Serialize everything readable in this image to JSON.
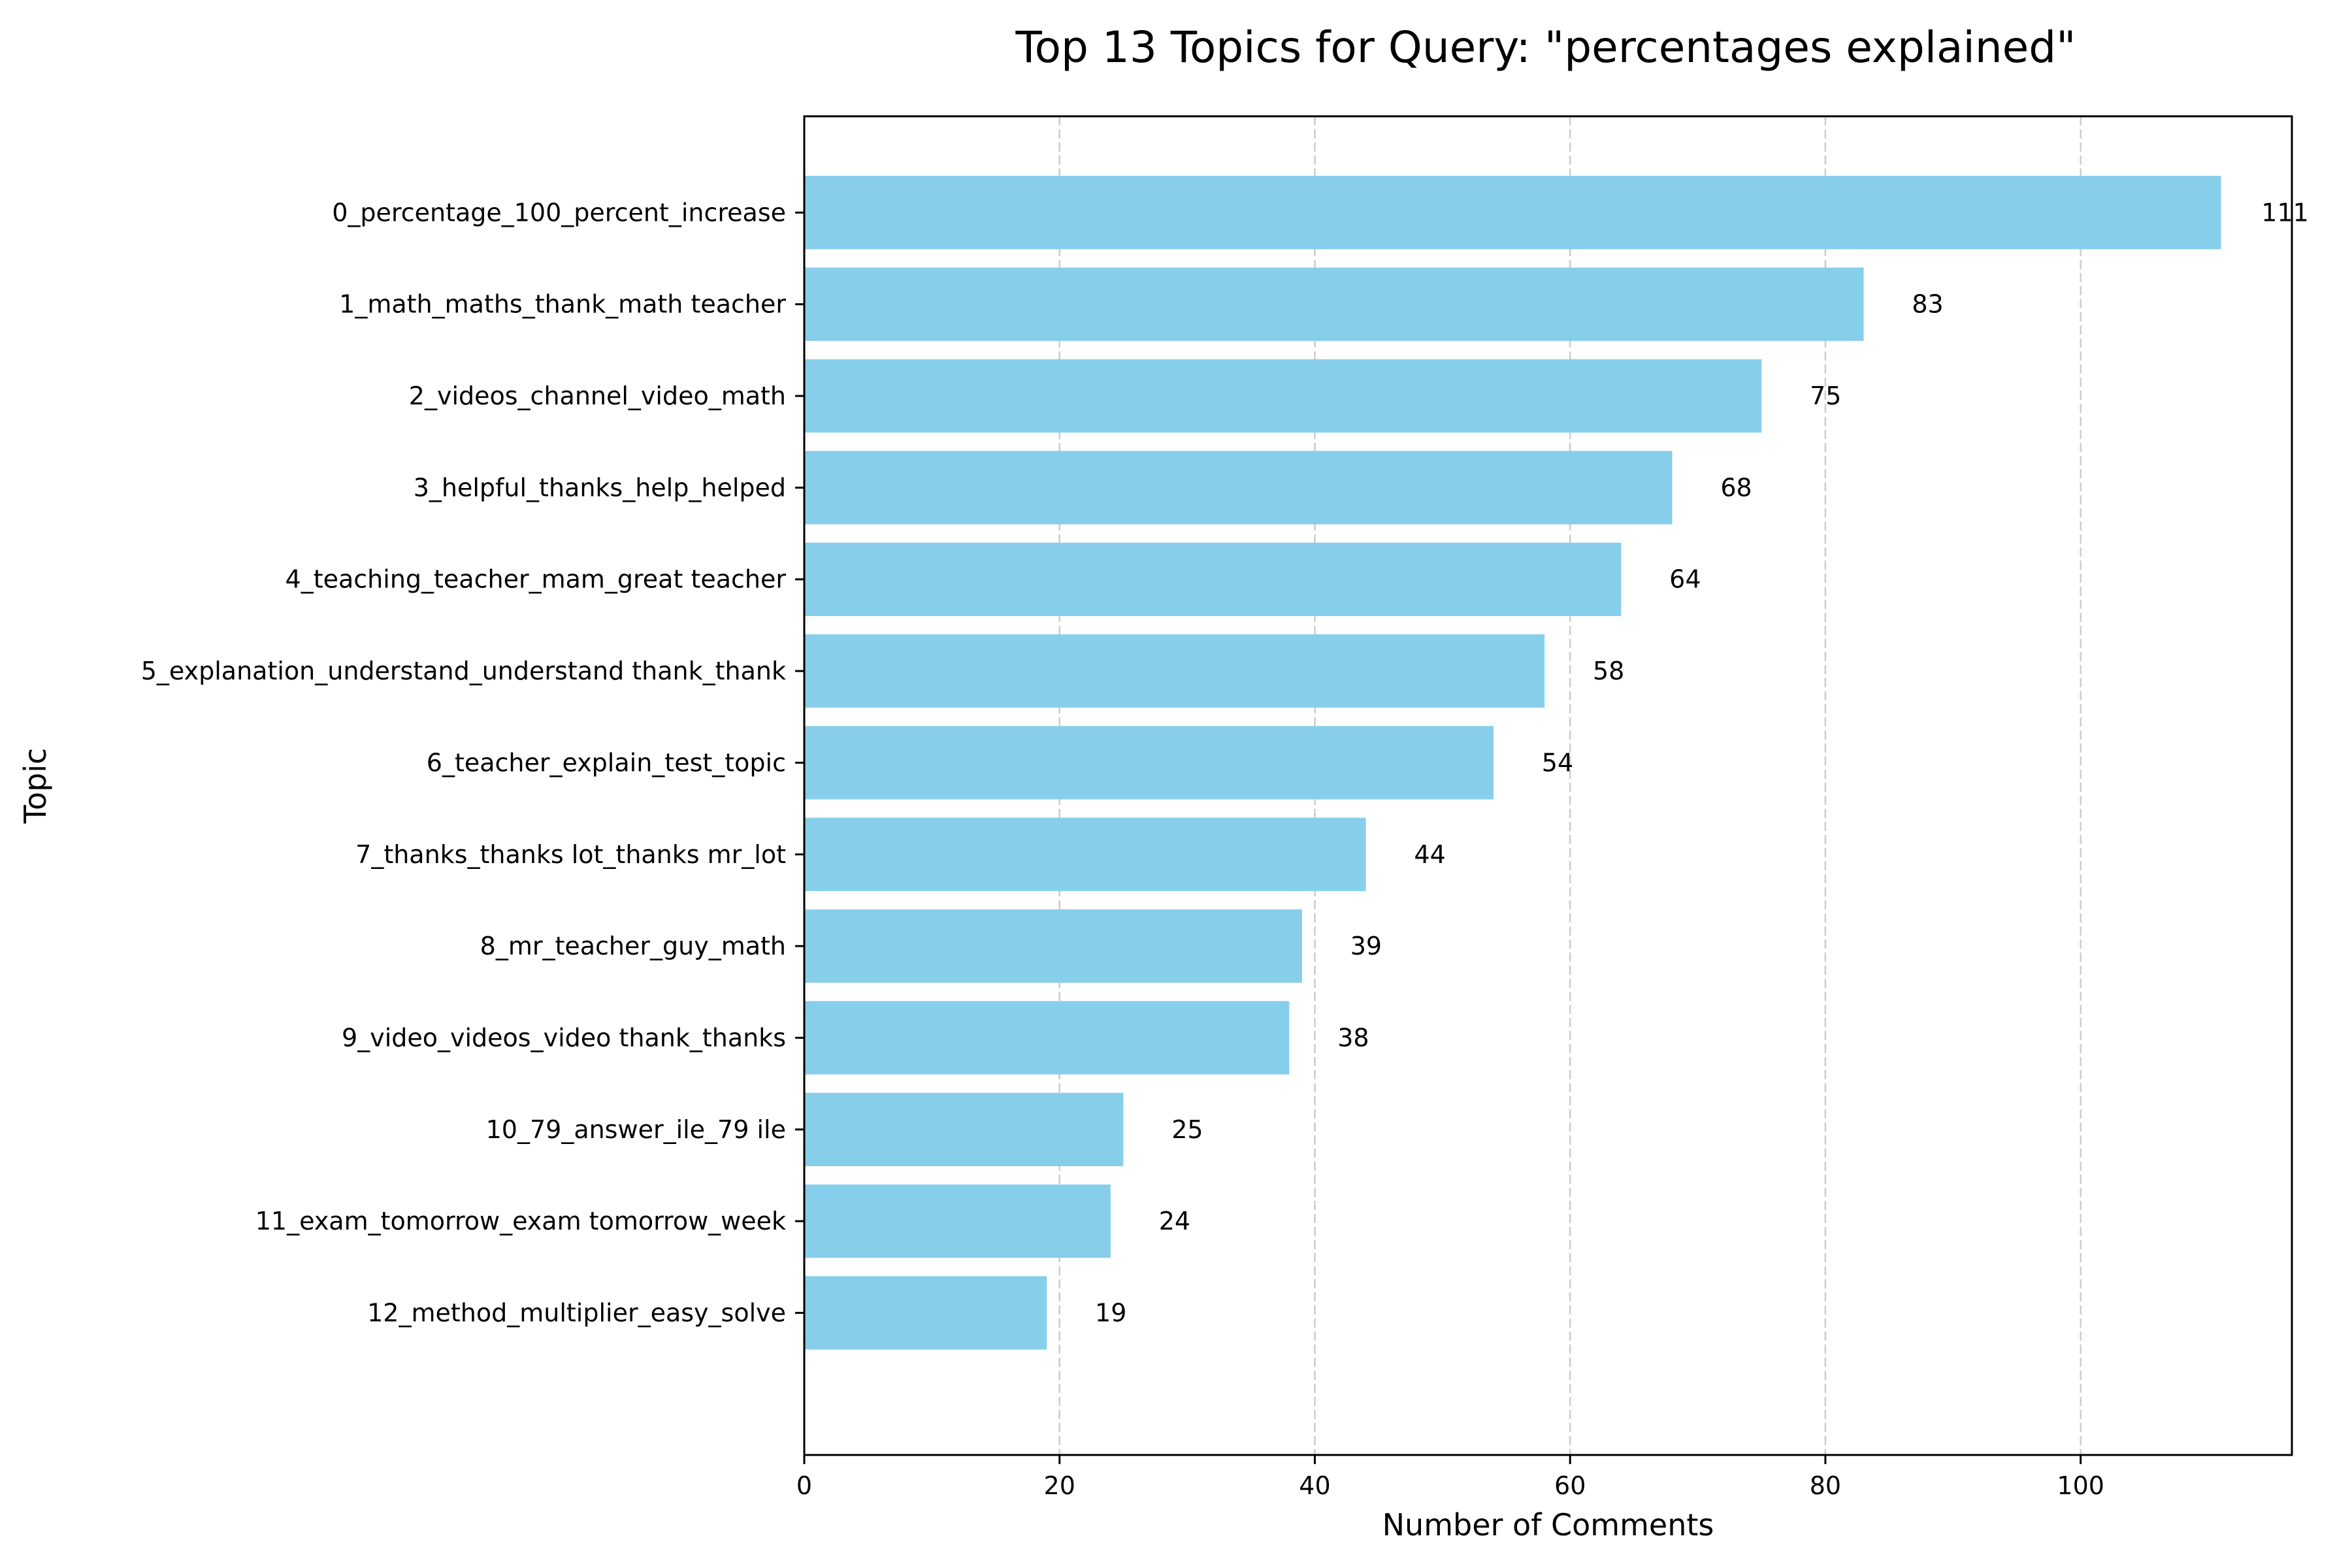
{
  "chart_data": {
    "type": "bar",
    "orientation": "horizontal",
    "title": "Top 13 Topics for Query: \"percentages explained\"",
    "xlabel": "Number of Comments",
    "ylabel": "Topic",
    "categories": [
      "0_percentage_100_percent_increase",
      "1_math_maths_thank_math teacher",
      "2_videos_channel_video_math",
      "3_helpful_thanks_help_helped",
      "4_teaching_teacher_mam_great teacher",
      "5_explanation_understand_understand thank_thank",
      "6_teacher_explain_test_topic",
      "7_thanks_thanks lot_thanks mr_lot",
      "8_mr_teacher_guy_math",
      "9_video_videos_video thank_thanks",
      "10_79_answer_ile_79 ile",
      "11_exam_tomorrow_exam tomorrow_week",
      "12_method_multiplier_easy_solve"
    ],
    "values": [
      111,
      83,
      75,
      68,
      64,
      58,
      54,
      44,
      39,
      38,
      25,
      24,
      19
    ],
    "xlim": [
      0,
      116.55
    ],
    "xticks": [
      0,
      20,
      40,
      60,
      80,
      100
    ],
    "grid": "x-dashed",
    "bar_color": "#87CEEB",
    "grid_color": "#cccccc",
    "show_value_labels": true
  }
}
